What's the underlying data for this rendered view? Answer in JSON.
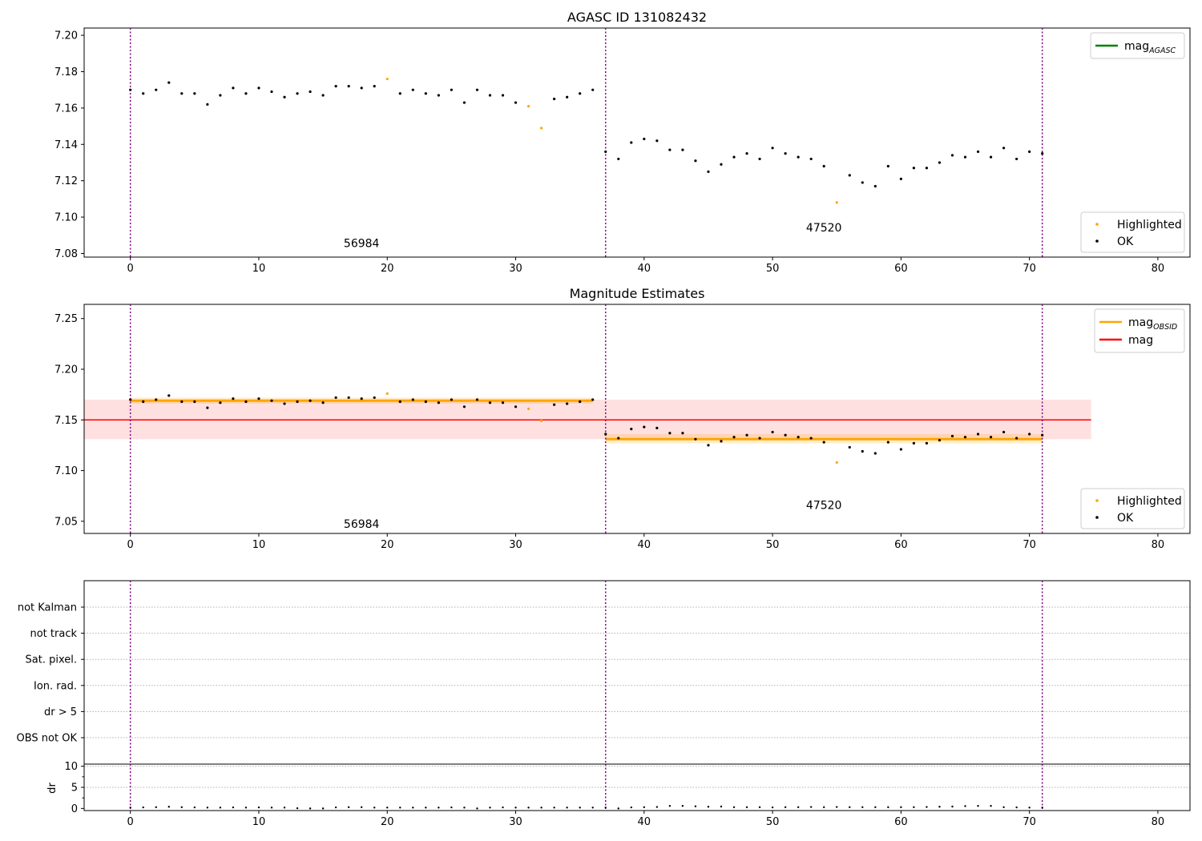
{
  "chart_data": [
    {
      "type": "scatter",
      "title": "AGASC ID 131082432",
      "xlim": [
        -3.6,
        82.5
      ],
      "ylim": [
        7.078,
        7.204
      ],
      "xticks": [
        0,
        10,
        20,
        30,
        40,
        50,
        60,
        70,
        80
      ],
      "yticks": [
        7.08,
        7.1,
        7.12,
        7.14,
        7.16,
        7.18,
        7.2
      ],
      "vlines": [
        0,
        37,
        71
      ],
      "legend_lines": [
        {
          "label": "mag",
          "sub": "AGASC",
          "color": "#008000"
        }
      ],
      "legend_markers": [
        {
          "label": "Highlighted",
          "color": "#ffa500"
        },
        {
          "label": "OK",
          "color": "#000000"
        }
      ],
      "annotations": [
        {
          "text": "56984",
          "x": 18,
          "y": 7.0835
        },
        {
          "text": "47520",
          "x": 54,
          "y": 7.092
        }
      ],
      "points": [
        [
          0,
          7.17
        ],
        [
          1,
          7.168
        ],
        [
          2,
          7.17
        ],
        [
          3,
          7.174
        ],
        [
          4,
          7.168
        ],
        [
          5,
          7.168
        ],
        [
          6,
          7.162
        ],
        [
          7,
          7.167
        ],
        [
          8,
          7.171
        ],
        [
          9,
          7.168
        ],
        [
          10,
          7.171
        ],
        [
          11,
          7.169
        ],
        [
          12,
          7.166
        ],
        [
          13,
          7.168
        ],
        [
          14,
          7.169
        ],
        [
          15,
          7.167
        ],
        [
          16,
          7.172
        ],
        [
          17,
          7.172
        ],
        [
          18,
          7.171
        ],
        [
          19,
          7.172
        ],
        [
          20,
          7.176
        ],
        [
          21,
          7.168
        ],
        [
          22,
          7.17
        ],
        [
          23,
          7.168
        ],
        [
          24,
          7.167
        ],
        [
          25,
          7.17
        ],
        [
          26,
          7.163
        ],
        [
          27,
          7.17
        ],
        [
          28,
          7.167
        ],
        [
          29,
          7.167
        ],
        [
          30,
          7.163
        ],
        [
          31,
          7.161
        ],
        [
          32,
          7.149
        ],
        [
          33,
          7.165
        ],
        [
          34,
          7.166
        ],
        [
          35,
          7.168
        ],
        [
          36,
          7.17
        ],
        [
          37,
          7.136
        ],
        [
          38,
          7.132
        ],
        [
          39,
          7.141
        ],
        [
          40,
          7.143
        ],
        [
          41,
          7.142
        ],
        [
          42,
          7.137
        ],
        [
          43,
          7.137
        ],
        [
          44,
          7.131
        ],
        [
          45,
          7.125
        ],
        [
          46,
          7.129
        ],
        [
          47,
          7.133
        ],
        [
          48,
          7.135
        ],
        [
          49,
          7.132
        ],
        [
          50,
          7.138
        ],
        [
          51,
          7.135
        ],
        [
          52,
          7.133
        ],
        [
          53,
          7.132
        ],
        [
          54,
          7.128
        ],
        [
          55,
          7.108
        ],
        [
          56,
          7.123
        ],
        [
          57,
          7.119
        ],
        [
          58,
          7.117
        ],
        [
          59,
          7.128
        ],
        [
          60,
          7.121
        ],
        [
          61,
          7.127
        ],
        [
          62,
          7.127
        ],
        [
          63,
          7.13
        ],
        [
          64,
          7.134
        ],
        [
          65,
          7.133
        ],
        [
          66,
          7.136
        ],
        [
          67,
          7.133
        ],
        [
          68,
          7.138
        ],
        [
          69,
          7.132
        ],
        [
          70,
          7.136
        ],
        [
          71,
          7.135
        ]
      ],
      "highlighted": [
        20,
        31,
        32,
        55
      ]
    },
    {
      "type": "scatter",
      "title": "Magnitude Estimates",
      "xlim": [
        -3.6,
        82.5
      ],
      "ylim": [
        7.038,
        7.264
      ],
      "xticks": [
        0,
        10,
        20,
        30,
        40,
        50,
        60,
        70,
        80
      ],
      "yticks": [
        7.05,
        7.1,
        7.15,
        7.2,
        7.25
      ],
      "vlines": [
        0,
        37,
        71
      ],
      "legend_lines": [
        {
          "label": "mag",
          "sub": "OBSID",
          "color": "#ffa500"
        },
        {
          "label": "mag",
          "sub": "",
          "color": "#ff0000"
        }
      ],
      "legend_markers": [
        {
          "label": "Highlighted",
          "color": "#ffa500"
        },
        {
          "label": "OK",
          "color": "#000000"
        }
      ],
      "annotations": [
        {
          "text": "56984",
          "x": 18,
          "y": 7.0435
        },
        {
          "text": "47520",
          "x": 54,
          "y": 7.062
        }
      ],
      "mag": {
        "value": 7.15,
        "band": [
          7.131,
          7.17
        ],
        "x": [
          -3.6,
          74.8
        ]
      },
      "mag_obsid": [
        {
          "x": [
            0,
            36
          ],
          "value": 7.169,
          "band": [
            7.166,
            7.172
          ]
        },
        {
          "x": [
            37,
            71
          ],
          "value": 7.131,
          "band": [
            7.127,
            7.136
          ]
        }
      ],
      "points_from_panel": 0
    },
    {
      "type": "scatter",
      "title": "",
      "xlim": [
        -3.6,
        82.5
      ],
      "ylabels": [
        "not Kalman",
        "not track",
        "Sat. pixel.",
        "Ion. rad.",
        "dr > 5",
        "OBS not OK"
      ],
      "vlines": [
        0,
        37,
        71
      ]
    },
    {
      "type": "scatter",
      "title": "",
      "ylabel": "dr",
      "xlim": [
        -3.6,
        82.5
      ],
      "ylim": [
        -0.5,
        10.5
      ],
      "xticks": [
        0,
        10,
        20,
        30,
        40,
        50,
        60,
        70,
        80
      ],
      "yticks": [
        0,
        5,
        10
      ],
      "vlines": [
        0,
        37,
        71
      ],
      "values": [
        0.2,
        0.25,
        0.3,
        0.4,
        0.3,
        0.25,
        0.2,
        0.2,
        0.25,
        0.2,
        0.25,
        0.2,
        0.2,
        0.05,
        0.0,
        0.0,
        0.25,
        0.3,
        0.3,
        0.2,
        0.2,
        0.2,
        0.2,
        0.2,
        0.2,
        0.25,
        0.2,
        0.0,
        0.2,
        0.25,
        0.2,
        0.2,
        0.2,
        0.2,
        0.2,
        0.2,
        0.2,
        0.2,
        0.0,
        0.25,
        0.3,
        0.35,
        0.6,
        0.6,
        0.5,
        0.4,
        0.45,
        0.3,
        0.3,
        0.3,
        0.25,
        0.3,
        0.3,
        0.35,
        0.3,
        0.35,
        0.3,
        0.3,
        0.3,
        0.3,
        0.3,
        0.3,
        0.35,
        0.4,
        0.45,
        0.55,
        0.6,
        0.6,
        0.3,
        0.25,
        0.2,
        0.2
      ]
    }
  ]
}
